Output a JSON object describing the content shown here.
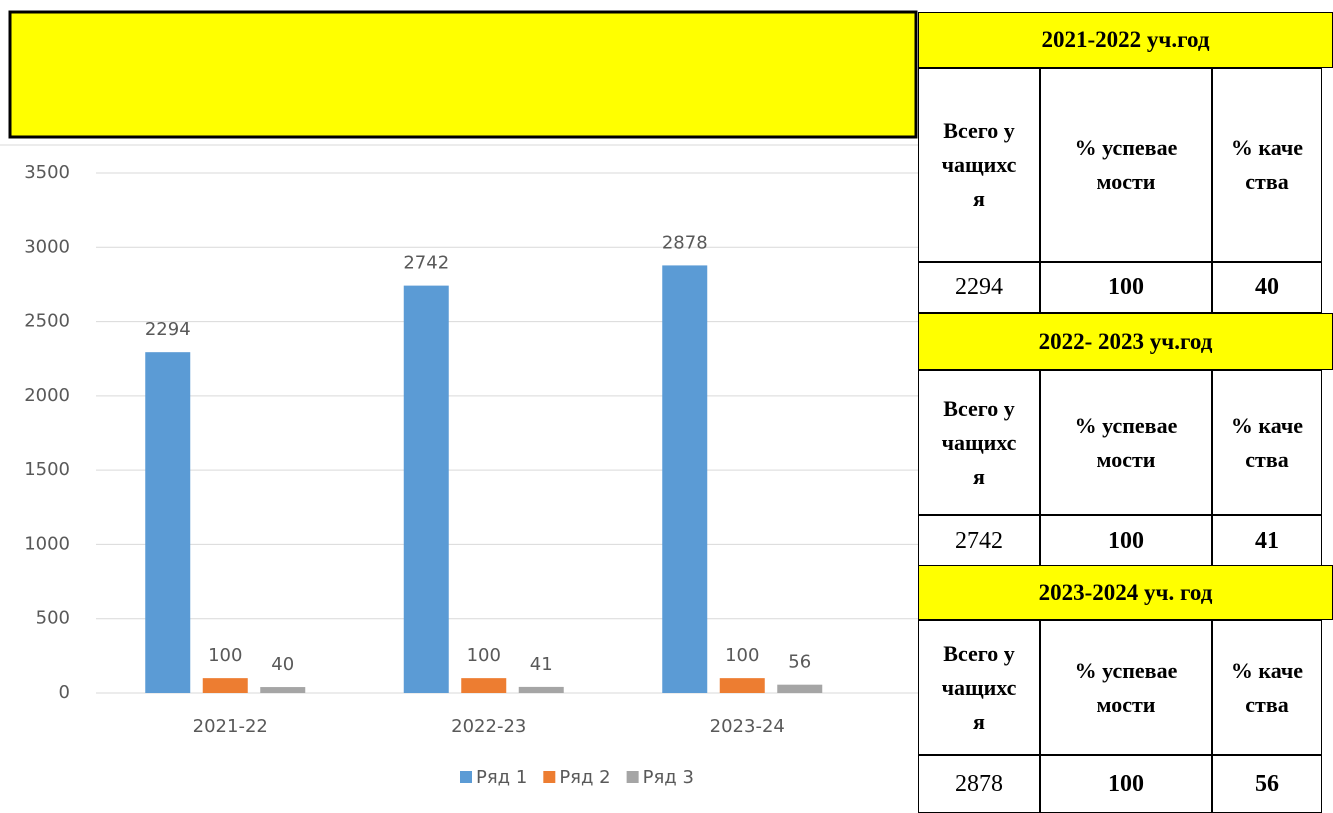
{
  "chart_data": {
    "type": "bar",
    "categories": [
      "2021-22",
      "2022-23",
      "2023-24"
    ],
    "series": [
      {
        "name": "Ряд 1",
        "color": "#5b9bd5",
        "values": [
          2294,
          2742,
          2878
        ]
      },
      {
        "name": "Ряд 2",
        "color": "#ed7d31",
        "values": [
          100,
          100,
          100
        ]
      },
      {
        "name": "Ряд 3",
        "color": "#a5a5a5",
        "values": [
          40,
          41,
          56
        ]
      }
    ],
    "ylim": [
      0,
      3500
    ],
    "yticks": [
      0,
      500,
      1000,
      1500,
      2000,
      2500,
      3000,
      3500
    ],
    "grid": true,
    "legend": "bottom",
    "data_labels": true
  },
  "tables": [
    {
      "title": "2021-2022 уч.год",
      "headers": [
        "Всего учащихся",
        "% успеваемости",
        "% качества"
      ],
      "values": [
        2294,
        100,
        40
      ]
    },
    {
      "title": "2022- 2023 уч.год",
      "headers": [
        "Всего учащихся",
        "% успеваемости",
        "% качества"
      ],
      "values": [
        2742,
        100,
        41
      ]
    },
    {
      "title": "2023-2024 уч. год",
      "headers": [
        "Всего учащихся",
        "% успеваемости",
        "% качества"
      ],
      "values": [
        2878,
        100,
        56
      ]
    }
  ]
}
